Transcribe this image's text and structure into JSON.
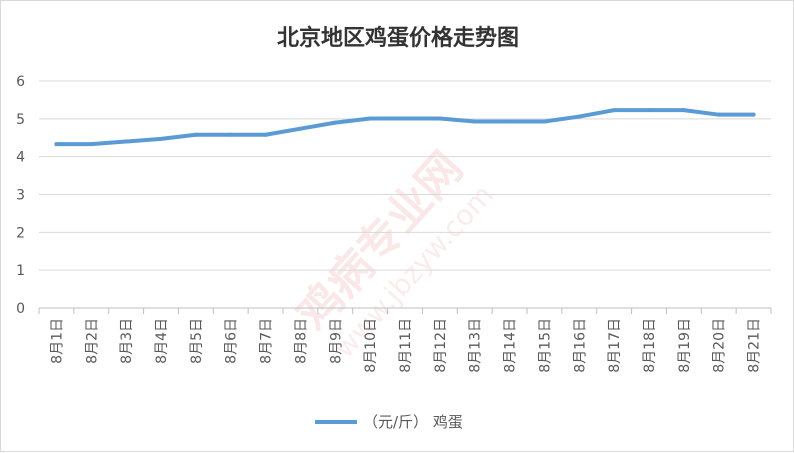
{
  "chart_data": {
    "type": "line",
    "title": "北京地区鸡蛋价格走势图",
    "categories": [
      "8月1日",
      "8月2日",
      "8月3日",
      "8月4日",
      "8月5日",
      "8月6日",
      "8月7日",
      "8月8日",
      "8月9日",
      "8月10日",
      "8月11日",
      "8月12日",
      "8月13日",
      "8月14日",
      "8月15日",
      "8月16日",
      "8月17日",
      "8月18日",
      "8月19日",
      "8月20日",
      "8月21日"
    ],
    "series": [
      {
        "name": "（元/斤） 鸡蛋",
        "color": "#5b9bd5",
        "values": [
          4.33,
          4.33,
          4.4,
          4.47,
          4.58,
          4.58,
          4.58,
          4.74,
          4.9,
          5.01,
          5.01,
          5.01,
          4.93,
          4.93,
          4.93,
          5.06,
          5.23,
          5.23,
          5.23,
          5.11,
          5.11
        ]
      }
    ],
    "ylim": [
      0,
      6
    ],
    "yticks": [
      0,
      1,
      2,
      3,
      4,
      5,
      6
    ],
    "xlabel": "",
    "ylabel": "",
    "grid": true,
    "legend_position": "bottom"
  },
  "watermark": {
    "text": "鸡病专业网",
    "url": "www.jbzyw.com"
  }
}
